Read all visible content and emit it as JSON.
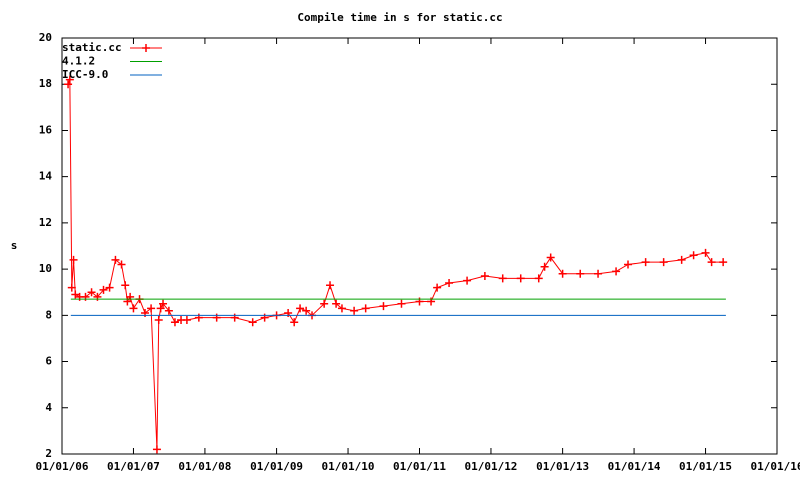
{
  "chart_data": {
    "type": "line",
    "title": "Compile time in s for static.cc",
    "y_label": "s",
    "xlim": [
      "2006-01-01",
      "2016-01-01"
    ],
    "xticks": [
      {
        "value": "2006-01-01",
        "label": "01/01/06"
      },
      {
        "value": "2007-01-01",
        "label": "01/01/07"
      },
      {
        "value": "2008-01-01",
        "label": "01/01/08"
      },
      {
        "value": "2009-01-01",
        "label": "01/01/09"
      },
      {
        "value": "2010-01-01",
        "label": "01/01/10"
      },
      {
        "value": "2011-01-01",
        "label": "01/01/11"
      },
      {
        "value": "2012-01-01",
        "label": "01/01/12"
      },
      {
        "value": "2013-01-01",
        "label": "01/01/13"
      },
      {
        "value": "2014-01-01",
        "label": "01/01/14"
      },
      {
        "value": "2015-01-01",
        "label": "01/01/15"
      },
      {
        "value": "2016-01-01",
        "label": "01/01/16"
      }
    ],
    "ylim": [
      2,
      20
    ],
    "yticks": [
      2,
      4,
      6,
      8,
      10,
      12,
      14,
      16,
      18,
      20
    ],
    "legend": "top-left",
    "series": [
      {
        "name": "static.cc",
        "color": "#ff0000",
        "markers": true,
        "x": [
          "2006-02-01",
          "2006-02-10",
          "2006-02-20",
          "2006-03-01",
          "2006-03-10",
          "2006-04-01",
          "2006-05-01",
          "2006-06-01",
          "2006-07-01",
          "2006-08-01",
          "2006-09-01",
          "2006-10-01",
          "2006-11-01",
          "2006-11-20",
          "2006-12-01",
          "2006-12-15",
          "2007-01-01",
          "2007-02-01",
          "2007-03-01",
          "2007-04-01",
          "2007-05-01",
          "2007-05-10",
          "2007-05-20",
          "2007-06-01",
          "2007-07-01",
          "2007-08-01",
          "2007-09-01",
          "2007-10-01",
          "2007-12-01",
          "2008-03-01",
          "2008-06-01",
          "2008-09-01",
          "2008-11-01",
          "2009-01-01",
          "2009-03-01",
          "2009-04-01",
          "2009-05-01",
          "2009-06-01",
          "2009-07-01",
          "2009-09-01",
          "2009-10-01",
          "2009-11-01",
          "2009-12-01",
          "2010-02-01",
          "2010-04-01",
          "2010-07-01",
          "2010-10-01",
          "2011-01-01",
          "2011-03-01",
          "2011-04-01",
          "2011-06-01",
          "2011-09-01",
          "2011-12-01",
          "2012-03-01",
          "2012-06-01",
          "2012-09-01",
          "2012-10-01",
          "2012-11-01",
          "2013-01-01",
          "2013-04-01",
          "2013-07-01",
          "2013-10-01",
          "2013-12-01",
          "2014-03-01",
          "2014-06-01",
          "2014-09-01",
          "2014-11-01",
          "2015-01-01",
          "2015-02-01",
          "2015-04-01"
        ],
        "values": [
          18.0,
          18.2,
          9.2,
          10.4,
          8.9,
          8.8,
          8.8,
          9.0,
          8.8,
          9.1,
          9.2,
          10.4,
          10.2,
          9.3,
          8.6,
          8.8,
          8.3,
          8.7,
          8.1,
          8.3,
          2.2,
          7.8,
          8.3,
          8.5,
          8.2,
          7.7,
          7.8,
          7.8,
          7.9,
          7.9,
          7.9,
          7.7,
          7.9,
          8.0,
          8.1,
          7.7,
          8.3,
          8.2,
          8.0,
          8.5,
          9.3,
          8.5,
          8.3,
          8.2,
          8.3,
          8.4,
          8.5,
          8.6,
          8.6,
          9.2,
          9.4,
          9.5,
          9.7,
          9.6,
          9.6,
          9.6,
          10.1,
          10.5,
          9.8,
          9.8,
          9.8,
          9.9,
          10.2,
          10.3,
          10.3,
          10.4,
          10.6,
          10.7,
          10.3,
          10.3
        ]
      },
      {
        "name": "4.1.2",
        "color": "#00a000",
        "markers": false,
        "x": [
          "2006-02-15",
          "2015-04-15"
        ],
        "values": [
          8.7,
          8.7
        ]
      },
      {
        "name": "ICC-9.0",
        "color": "#0060c0",
        "markers": false,
        "x": [
          "2006-02-15",
          "2015-04-15"
        ],
        "values": [
          8.0,
          8.0
        ]
      }
    ]
  }
}
